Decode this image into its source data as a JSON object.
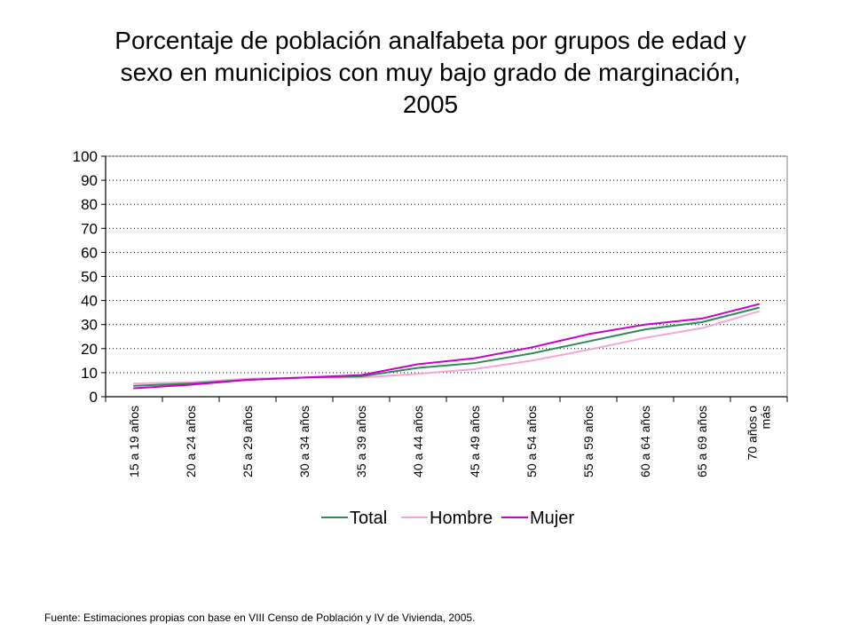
{
  "chart_data": {
    "type": "line",
    "title": "Porcentaje de población analfabeta por grupos de edad y sexo en municipios con muy bajo grado de marginación, 2005",
    "xlabel": "",
    "ylabel": "",
    "ylim": [
      0,
      100
    ],
    "yticks": [
      "0",
      "10",
      "20",
      "30",
      "40",
      "50",
      "60",
      "70",
      "80",
      "90",
      "100"
    ],
    "categories": [
      [
        "15 a 19 años"
      ],
      [
        "20 a 24 años"
      ],
      [
        "25 a 29 años"
      ],
      [
        "30 a 34 años"
      ],
      [
        "35 a 39 años"
      ],
      [
        "40 a 44 años"
      ],
      [
        "45 a 49 años"
      ],
      [
        "50 a 54 años"
      ],
      [
        "55 a 59 años"
      ],
      [
        "60 a 64 años"
      ],
      [
        "65 a 69 años"
      ],
      [
        "70 años o",
        "más"
      ]
    ],
    "grid": "horizontal-dotted",
    "legend_position": "bottom",
    "series": [
      {
        "name": "Total",
        "color": "#2e8b57",
        "values": [
          4.5,
          5.5,
          7.0,
          8.0,
          8.5,
          12.0,
          14.0,
          18.0,
          23.0,
          28.0,
          31.0,
          37.0
        ]
      },
      {
        "name": "Hombre",
        "color": "#f4a6d7",
        "values": [
          5.5,
          6.0,
          7.5,
          8.0,
          8.0,
          9.5,
          11.5,
          15.0,
          19.5,
          24.5,
          28.5,
          35.5
        ]
      },
      {
        "name": "Mujer",
        "color": "#cc00cc",
        "values": [
          3.5,
          5.0,
          7.0,
          8.0,
          9.0,
          13.5,
          16.0,
          20.5,
          26.0,
          30.0,
          32.5,
          38.5
        ]
      }
    ]
  },
  "source": "Fuente: Estimaciones propias con base en VIII Censo de Población y IV de Vivienda, 2005."
}
